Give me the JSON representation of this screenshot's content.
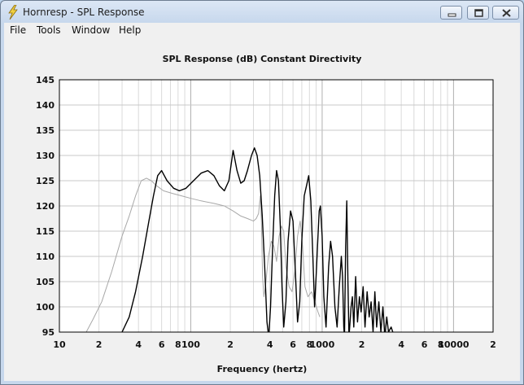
{
  "window": {
    "title": "Hornresp - SPL Response",
    "icon": "lightning-pencil-icon",
    "controls": [
      "minimize-icon",
      "maximize-icon",
      "close-icon"
    ]
  },
  "menu": {
    "file": "File",
    "tools": "Tools",
    "window": "Window",
    "help": "Help"
  },
  "colors": {
    "primary_trace": "#000000",
    "secondary_trace": "#a8a8a8",
    "plot_background": "#ffffff",
    "grid": "#c8c8c8"
  },
  "chart_data": {
    "type": "line",
    "title": "SPL Response (dB)   Constant Directivity",
    "xlabel": "Frequency (hertz)",
    "ylabel": "",
    "x_scale": "log",
    "xlim": [
      10,
      20000
    ],
    "ylim": [
      95,
      145
    ],
    "yticks": [
      145,
      140,
      135,
      130,
      125,
      120,
      115,
      110,
      105,
      100,
      95
    ],
    "xtick_labels": [
      {
        "value": 10,
        "label": "10"
      },
      {
        "value": 20,
        "label": "2"
      },
      {
        "value": 40,
        "label": "4"
      },
      {
        "value": 60,
        "label": "6"
      },
      {
        "value": 80,
        "label": "8"
      },
      {
        "value": 100,
        "label": "100"
      },
      {
        "value": 200,
        "label": "2"
      },
      {
        "value": 400,
        "label": "4"
      },
      {
        "value": 600,
        "label": "6"
      },
      {
        "value": 800,
        "label": "8"
      },
      {
        "value": 1000,
        "label": "1000"
      },
      {
        "value": 2000,
        "label": "2"
      },
      {
        "value": 4000,
        "label": "4"
      },
      {
        "value": 6000,
        "label": "6"
      },
      {
        "value": 8000,
        "label": "8"
      },
      {
        "value": 10000,
        "label": "10000"
      },
      {
        "value": 20000,
        "label": "2"
      }
    ],
    "grid": true,
    "series": [
      {
        "color": "#000000",
        "points": [
          [
            30,
            95
          ],
          [
            34,
            98
          ],
          [
            38,
            103
          ],
          [
            43,
            110
          ],
          [
            48,
            117
          ],
          [
            52,
            122
          ],
          [
            56,
            126
          ],
          [
            60,
            127
          ],
          [
            66,
            125
          ],
          [
            74,
            123.5
          ],
          [
            82,
            123
          ],
          [
            92,
            123.5
          ],
          [
            105,
            125
          ],
          [
            120,
            126.5
          ],
          [
            135,
            127
          ],
          [
            150,
            126
          ],
          [
            165,
            124
          ],
          [
            180,
            123
          ],
          [
            195,
            125
          ],
          [
            210,
            131
          ],
          [
            225,
            127
          ],
          [
            240,
            124.5
          ],
          [
            255,
            125
          ],
          [
            270,
            127
          ],
          [
            290,
            130
          ],
          [
            305,
            131.5
          ],
          [
            320,
            130
          ],
          [
            335,
            126
          ],
          [
            350,
            118
          ],
          [
            365,
            108
          ],
          [
            380,
            97
          ],
          [
            392,
            94
          ],
          [
            405,
            100
          ],
          [
            420,
            112
          ],
          [
            435,
            122
          ],
          [
            450,
            127
          ],
          [
            465,
            125
          ],
          [
            480,
            116
          ],
          [
            495,
            104
          ],
          [
            510,
            96
          ],
          [
            530,
            101
          ],
          [
            550,
            113
          ],
          [
            575,
            119
          ],
          [
            600,
            117
          ],
          [
            625,
            107
          ],
          [
            650,
            97
          ],
          [
            675,
            101
          ],
          [
            700,
            113
          ],
          [
            730,
            122
          ],
          [
            760,
            124
          ],
          [
            790,
            126
          ],
          [
            820,
            121
          ],
          [
            850,
            110
          ],
          [
            875,
            100
          ],
          [
            900,
            106
          ],
          [
            925,
            113
          ],
          [
            950,
            119
          ],
          [
            970,
            120
          ],
          [
            1000,
            114
          ],
          [
            1030,
            102
          ],
          [
            1070,
            96
          ],
          [
            1120,
            108
          ],
          [
            1160,
            113
          ],
          [
            1200,
            110
          ],
          [
            1250,
            100
          ],
          [
            1300,
            96
          ],
          [
            1350,
            104
          ],
          [
            1400,
            110
          ],
          [
            1430,
            106
          ],
          [
            1460,
            96
          ],
          [
            1480,
            94
          ],
          [
            1510,
            112
          ],
          [
            1540,
            121
          ],
          [
            1570,
            105
          ],
          [
            1600,
            94
          ],
          [
            1660,
            100
          ],
          [
            1700,
            102
          ],
          [
            1740,
            96
          ],
          [
            1800,
            106
          ],
          [
            1860,
            97
          ],
          [
            1920,
            102
          ],
          [
            1980,
            99
          ],
          [
            2050,
            104
          ],
          [
            2120,
            96
          ],
          [
            2200,
            103
          ],
          [
            2280,
            98
          ],
          [
            2360,
            101
          ],
          [
            2440,
            95
          ],
          [
            2520,
            103
          ],
          [
            2600,
            96
          ],
          [
            2700,
            101
          ],
          [
            2800,
            95
          ],
          [
            2900,
            100
          ],
          [
            3000,
            94
          ],
          [
            3100,
            98
          ],
          [
            3200,
            95
          ],
          [
            3350,
            96
          ],
          [
            3500,
            94.5
          ]
        ]
      },
      {
        "color": "#a8a8a8",
        "points": [
          [
            16,
            95
          ],
          [
            18,
            97.5
          ],
          [
            21,
            101
          ],
          [
            25,
            107
          ],
          [
            30,
            114
          ],
          [
            34,
            118
          ],
          [
            38,
            122
          ],
          [
            42,
            125
          ],
          [
            46,
            125.5
          ],
          [
            50,
            125
          ],
          [
            55,
            124
          ],
          [
            62,
            123
          ],
          [
            72,
            122.5
          ],
          [
            85,
            122
          ],
          [
            100,
            121.5
          ],
          [
            120,
            121
          ],
          [
            150,
            120.5
          ],
          [
            180,
            120
          ],
          [
            210,
            119
          ],
          [
            240,
            118
          ],
          [
            270,
            117.5
          ],
          [
            300,
            117
          ],
          [
            315,
            117.5
          ],
          [
            328,
            118.5
          ],
          [
            338,
            122
          ],
          [
            345,
            117
          ],
          [
            352,
            106
          ],
          [
            360,
            102
          ],
          [
            370,
            104
          ],
          [
            390,
            110
          ],
          [
            410,
            113
          ],
          [
            430,
            112
          ],
          [
            450,
            109
          ],
          [
            470,
            114
          ],
          [
            490,
            116
          ],
          [
            510,
            115
          ],
          [
            530,
            108
          ],
          [
            560,
            104
          ],
          [
            590,
            103
          ],
          [
            620,
            107
          ],
          [
            650,
            114
          ],
          [
            680,
            117
          ],
          [
            710,
            112
          ],
          [
            740,
            104
          ],
          [
            780,
            102
          ],
          [
            830,
            103
          ],
          [
            880,
            101
          ],
          [
            930,
            99
          ],
          [
            960,
            98
          ]
        ]
      }
    ]
  }
}
